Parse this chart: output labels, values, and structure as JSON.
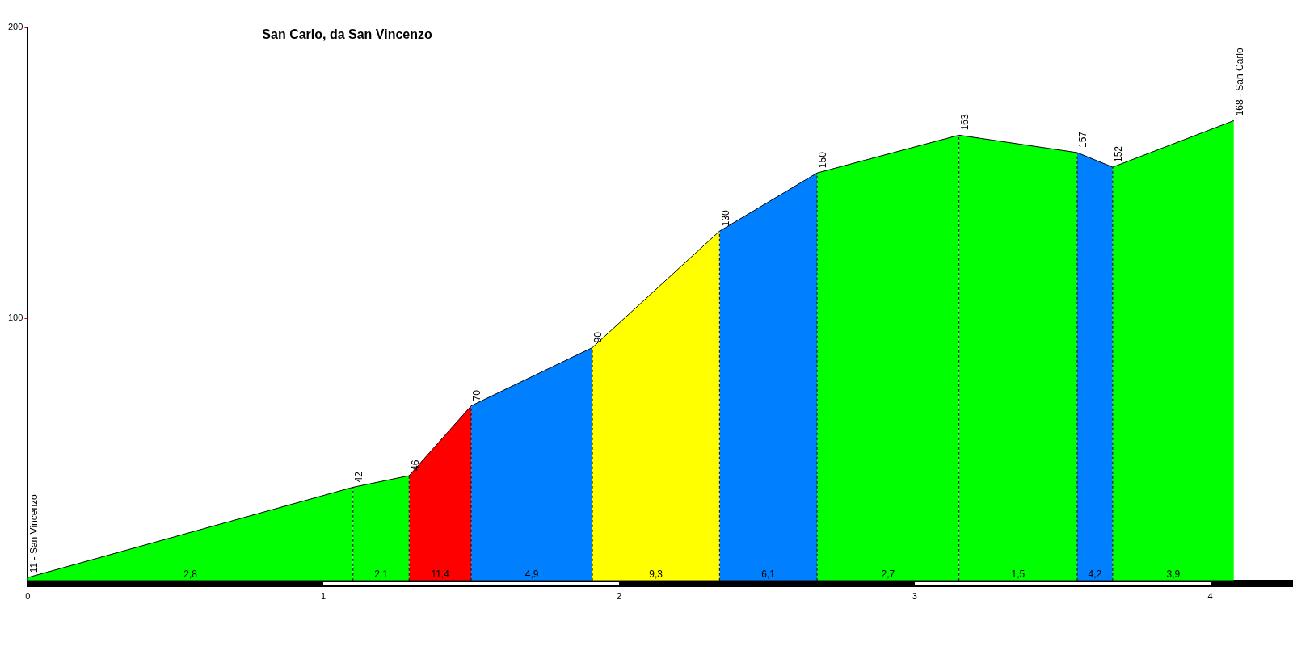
{
  "chart_data": {
    "type": "area",
    "title": "San Carlo, da San Vincenzo",
    "series": [
      {
        "x": [
          0,
          1.1
        ],
        "values": [
          11,
          42
        ],
        "color": "#00ff00",
        "value_labels": [
          "11 - San Vincenzo",
          null
        ]
      },
      {
        "x": [
          1.1,
          1.29
        ],
        "values": [
          42,
          46
        ],
        "color": "#00ff00",
        "value_labels": [
          "42",
          null
        ]
      },
      {
        "x": [
          1.29,
          1.5
        ],
        "values": [
          46,
          70
        ],
        "color": "#ff0000",
        "value_labels": [
          "46",
          null
        ]
      },
      {
        "x": [
          1.5,
          1.91
        ],
        "values": [
          70,
          90
        ],
        "color": "#0080ff",
        "value_labels": [
          "70",
          null
        ]
      },
      {
        "x": [
          1.91,
          2.34
        ],
        "values": [
          90,
          130
        ],
        "color": "#ffff00",
        "value_labels": [
          "90",
          null
        ]
      },
      {
        "x": [
          2.34,
          2.67
        ],
        "values": [
          130,
          150
        ],
        "color": "#0080ff",
        "value_labels": [
          "130",
          null
        ]
      },
      {
        "x": [
          2.67,
          3.15
        ],
        "values": [
          150,
          163
        ],
        "color": "#00ff00",
        "value_labels": [
          "150",
          null
        ]
      },
      {
        "x": [
          3.15,
          3.55
        ],
        "values": [
          163,
          157
        ],
        "color": "#00ff00",
        "value_labels": [
          "163",
          null
        ]
      },
      {
        "x": [
          3.55,
          3.67
        ],
        "values": [
          157,
          152
        ],
        "color": "#0080ff",
        "value_labels": [
          "157",
          null
        ]
      },
      {
        "x": [
          3.67,
          4.08
        ],
        "values": [
          152,
          168
        ],
        "color": "#00ff00",
        "value_labels": [
          "152",
          "168 - San Carlo"
        ]
      }
    ],
    "annotations": [
      "2,8",
      "2,1",
      "11,4",
      "4,9",
      "9,3",
      "6,1",
      "2,7",
      "1,5",
      "4,2",
      "3,9"
    ],
    "ref_lines": [
      {
        "axis": "x",
        "value": 1.1,
        "color": "#000000",
        "line_style": "dashed"
      },
      {
        "axis": "x",
        "value": 1.29,
        "color": "#000000",
        "line_style": "dashed"
      },
      {
        "axis": "x",
        "value": 1.5,
        "color": "#000000",
        "line_style": "dashed"
      },
      {
        "axis": "x",
        "value": 1.91,
        "color": "#000000",
        "line_style": "dashed"
      },
      {
        "axis": "x",
        "value": 2.34,
        "color": "#000000",
        "line_style": "dashed"
      },
      {
        "axis": "x",
        "value": 2.67,
        "color": "#000000",
        "line_style": "dashed"
      },
      {
        "axis": "x",
        "value": 3.15,
        "color": "#000000",
        "line_style": "dashed"
      },
      {
        "axis": "x",
        "value": 3.55,
        "color": "#000000",
        "line_style": "dashed"
      },
      {
        "axis": "x",
        "value": 3.67,
        "color": "#000000",
        "line_style": "dashed"
      }
    ],
    "xlim": [
      0,
      4.28
    ],
    "xticks": [
      0,
      1,
      2,
      3,
      4
    ],
    "ylim": [
      10,
      200
    ],
    "yticks": [
      100,
      200
    ],
    "marker": "none",
    "grid": false,
    "legend": false
  }
}
